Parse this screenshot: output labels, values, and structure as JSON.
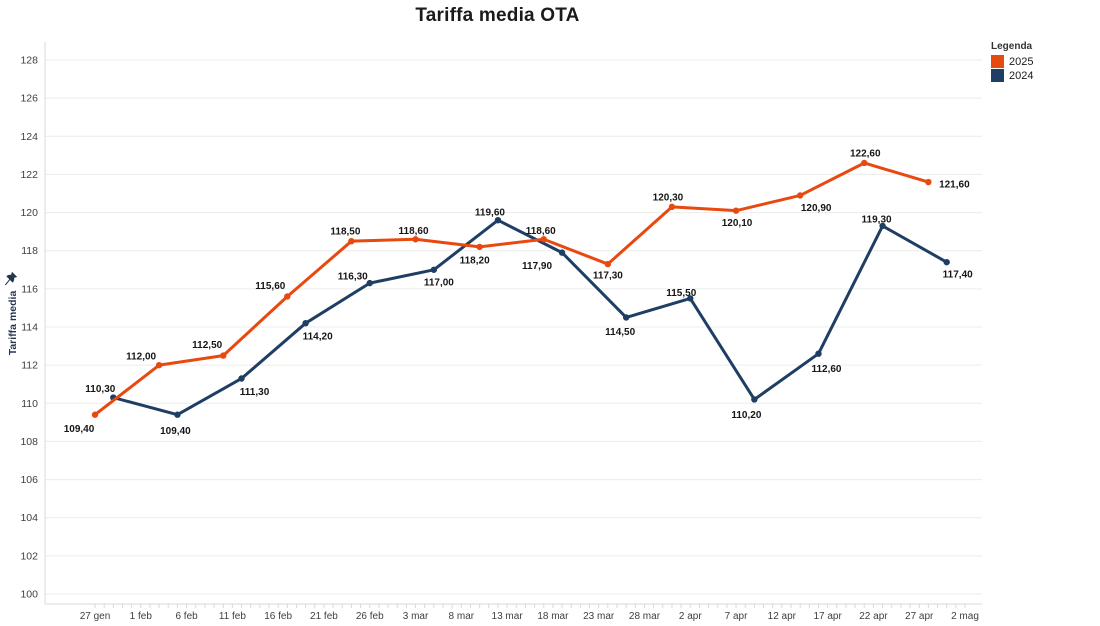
{
  "title": "Tariffa media OTA",
  "legend": {
    "title": "Legenda",
    "items": [
      {
        "label": "2025",
        "color": "#e8490f"
      },
      {
        "label": "2024",
        "color": "#1f3e64"
      }
    ]
  },
  "y_axis": {
    "title": "Tariffa media"
  },
  "colors": {
    "series_2025": "#e8490f",
    "series_2024": "#1f3e64",
    "gridline": "#ececec",
    "axis_line": "#d9d9d9",
    "tick_label": "#3f3f3f",
    "data_label": "#161616",
    "title_text": "#1b1b1b"
  },
  "chart_data": {
    "type": "line",
    "title": "Tariffa media OTA",
    "ylabel": "Tariffa media",
    "ylim": [
      100,
      128
    ],
    "y_tick_step": 2,
    "y_tick_labels": [
      "100",
      "102",
      "104",
      "106",
      "108",
      "110",
      "112",
      "114",
      "116",
      "118",
      "120",
      "122",
      "124",
      "126",
      "128"
    ],
    "x_tick_labels": [
      "27 gen",
      "1 feb",
      "6 feb",
      "11 feb",
      "16 feb",
      "21 feb",
      "26 feb",
      "3 mar",
      "8 mar",
      "13 mar",
      "18 mar",
      "23 mar",
      "28 mar",
      "2 apr",
      "7 apr",
      "12 apr",
      "17 apr",
      "22 apr",
      "27 apr",
      "2 mag"
    ],
    "tick_interval_days": 5,
    "point_interval_days": 7,
    "grid": true,
    "legend_position": "top-right",
    "series": [
      {
        "name": "2025",
        "color": "#e8490f",
        "day_offset": 0,
        "values": [
          109.4,
          112.0,
          112.5,
          115.6,
          118.5,
          118.6,
          118.2,
          118.6,
          117.3,
          120.3,
          120.1,
          120.9,
          122.6,
          121.6
        ],
        "labels": [
          "109,40",
          "112,00",
          "112,50",
          "115,60",
          "118,50",
          "118,60",
          "118,20",
          "118,60",
          "117,30",
          "120,30",
          "120,10",
          "120,90",
          "122,60",
          "121,60"
        ],
        "label_offsets": [
          [
            -16,
            14
          ],
          [
            -18,
            -9
          ],
          [
            -16,
            -11
          ],
          [
            -17,
            -11
          ],
          [
            -6,
            -10
          ],
          [
            -2,
            -9
          ],
          [
            -5,
            13
          ],
          [
            -3,
            -9
          ],
          [
            0,
            11
          ],
          [
            -4,
            -10
          ],
          [
            1,
            12
          ],
          [
            16,
            12
          ],
          [
            1,
            -10
          ],
          [
            26,
            2
          ]
        ]
      },
      {
        "name": "2024",
        "color": "#1f3e64",
        "day_offset": 2,
        "values": [
          110.3,
          109.4,
          111.3,
          114.2,
          116.3,
          117.0,
          119.6,
          117.9,
          114.5,
          115.5,
          110.2,
          112.6,
          119.3,
          117.4
        ],
        "labels": [
          "110,30",
          "109,40",
          "111,30",
          "114,20",
          "116,30",
          "117,00",
          "119,60",
          "117,90",
          "114,50",
          "115,50",
          "110,20",
          "112,60",
          "119,30",
          "117,40"
        ],
        "label_offsets": [
          [
            -13,
            -9
          ],
          [
            -2,
            16
          ],
          [
            13,
            13
          ],
          [
            12,
            13
          ],
          [
            -17,
            -7
          ],
          [
            5,
            12
          ],
          [
            -8,
            -8
          ],
          [
            -25,
            13
          ],
          [
            -6,
            14
          ],
          [
            -9,
            -6
          ],
          [
            -8,
            15
          ],
          [
            8,
            15
          ],
          [
            -6,
            -7
          ],
          [
            11,
            12
          ]
        ]
      }
    ]
  }
}
